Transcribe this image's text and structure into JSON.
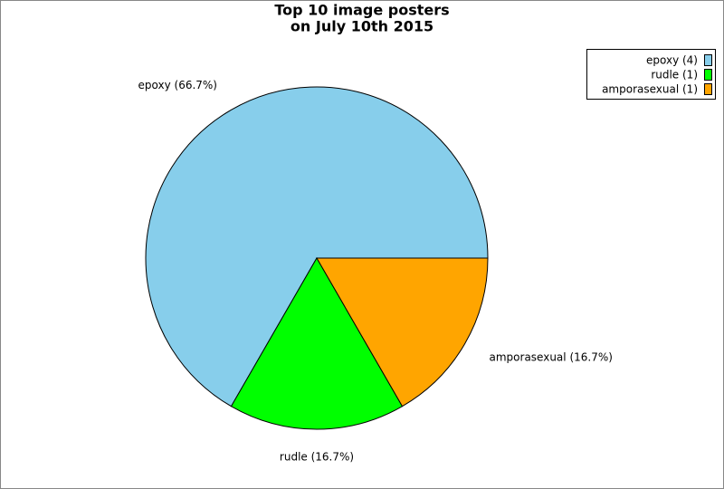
{
  "chart_data": {
    "type": "pie",
    "title": [
      "Top 10 image posters",
      "on July 10th 2015"
    ],
    "values": [
      4,
      1,
      1
    ],
    "value_labels": [
      "epoxy (66.7%)",
      "rudle (16.7%)",
      "amporasexual (16.7%)"
    ],
    "legend": [
      "epoxy (4)",
      "rudle (1)",
      "amporasexual (1)"
    ],
    "colors": [
      "#87ceeb",
      "#00ff00",
      "#ffa500"
    ]
  }
}
